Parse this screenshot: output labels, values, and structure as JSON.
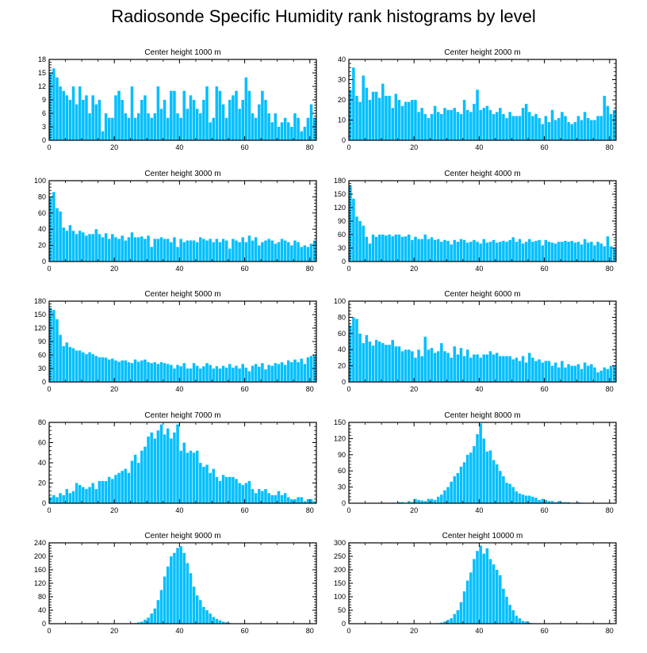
{
  "title": "Radiosonde Specific Humidity rank histograms by level",
  "colors": {
    "bar": "#00bfff",
    "axis": "#000000"
  },
  "chart_data": [
    {
      "type": "bar",
      "title": "Center height 1000 m",
      "xlim": [
        0,
        82
      ],
      "ylim": [
        0,
        18
      ],
      "xticks": [
        0,
        20,
        40,
        60,
        80
      ],
      "yticks": [
        0,
        3,
        6,
        9,
        12,
        15,
        18
      ],
      "values": [
        15,
        16,
        14,
        12,
        11,
        10,
        9,
        12,
        8,
        12,
        9,
        10,
        6,
        10,
        8,
        9,
        2,
        6,
        5,
        5,
        10,
        11,
        9,
        6,
        5,
        12,
        5,
        6,
        9,
        10,
        6,
        5,
        6,
        12,
        7,
        9,
        5,
        11,
        11,
        6,
        5,
        11,
        7,
        10,
        9,
        7,
        6,
        9,
        12,
        4,
        5,
        12,
        11,
        8,
        5,
        9,
        10,
        11,
        7,
        9,
        14,
        11,
        6,
        5,
        8,
        11,
        9,
        6,
        4,
        6,
        3,
        4,
        5,
        4,
        3,
        6,
        5,
        2,
        3,
        5,
        8,
        5
      ]
    },
    {
      "type": "bar",
      "title": "Center height 2000 m",
      "xlim": [
        0,
        82
      ],
      "ylim": [
        0,
        40
      ],
      "xticks": [
        0,
        20,
        40,
        60,
        80
      ],
      "yticks": [
        0,
        10,
        20,
        30,
        40
      ],
      "values": [
        25,
        36,
        22,
        19,
        32,
        26,
        20,
        24,
        24,
        21,
        28,
        22,
        22,
        16,
        23,
        20,
        17,
        19,
        19,
        20,
        20,
        14,
        16,
        13,
        11,
        13,
        17,
        14,
        13,
        16,
        15,
        15,
        16,
        14,
        13,
        20,
        15,
        14,
        18,
        25,
        15,
        16,
        17,
        15,
        13,
        14,
        16,
        13,
        11,
        14,
        12,
        12,
        12,
        16,
        18,
        14,
        12,
        13,
        11,
        8,
        12,
        9,
        15,
        10,
        11,
        14,
        12,
        9,
        8,
        9,
        12,
        10,
        14,
        11,
        10,
        10,
        12,
        12,
        22,
        17,
        13,
        15
      ]
    },
    {
      "type": "bar",
      "title": "Center height 3000 m",
      "xlim": [
        0,
        82
      ],
      "ylim": [
        0,
        100
      ],
      "xticks": [
        0,
        20,
        40,
        60,
        80
      ],
      "yticks": [
        0,
        20,
        40,
        60,
        80,
        100
      ],
      "values": [
        80,
        86,
        66,
        62,
        42,
        38,
        45,
        38,
        34,
        38,
        36,
        32,
        34,
        34,
        40,
        34,
        30,
        35,
        28,
        34,
        30,
        28,
        32,
        26,
        30,
        36,
        30,
        30,
        31,
        28,
        32,
        18,
        28,
        28,
        30,
        28,
        28,
        24,
        30,
        18,
        28,
        24,
        26,
        26,
        26,
        24,
        30,
        28,
        26,
        28,
        24,
        28,
        24,
        28,
        26,
        16,
        28,
        26,
        24,
        30,
        24,
        32,
        26,
        30,
        20,
        24,
        26,
        28,
        26,
        22,
        24,
        28,
        26,
        24,
        20,
        26,
        24,
        18,
        20,
        18,
        22,
        26
      ]
    },
    {
      "type": "bar",
      "title": "Center height 4000 m",
      "xlim": [
        0,
        82
      ],
      "ylim": [
        0,
        180
      ],
      "xticks": [
        0,
        20,
        40,
        60,
        80
      ],
      "yticks": [
        0,
        30,
        60,
        90,
        120,
        150,
        180
      ],
      "values": [
        170,
        140,
        100,
        90,
        80,
        55,
        40,
        60,
        55,
        60,
        60,
        58,
        60,
        56,
        60,
        60,
        55,
        56,
        60,
        48,
        55,
        50,
        50,
        60,
        50,
        54,
        48,
        50,
        44,
        48,
        46,
        38,
        48,
        44,
        50,
        48,
        42,
        44,
        48,
        44,
        40,
        50,
        42,
        44,
        48,
        42,
        44,
        46,
        44,
        48,
        54,
        44,
        50,
        40,
        44,
        50,
        44,
        46,
        48,
        36,
        48,
        44,
        42,
        40,
        44,
        44,
        46,
        44,
        46,
        42,
        44,
        38,
        50,
        42,
        44,
        36,
        44,
        40,
        34,
        56,
        34,
        30
      ]
    },
    {
      "type": "bar",
      "title": "Center height 5000 m",
      "xlim": [
        0,
        82
      ],
      "ylim": [
        0,
        180
      ],
      "xticks": [
        0,
        20,
        40,
        60,
        80
      ],
      "yticks": [
        0,
        30,
        60,
        90,
        120,
        150,
        180
      ],
      "values": [
        165,
        160,
        140,
        105,
        80,
        88,
        78,
        75,
        70,
        70,
        66,
        62,
        66,
        62,
        58,
        55,
        55,
        54,
        50,
        52,
        48,
        45,
        48,
        48,
        44,
        42,
        50,
        45,
        48,
        50,
        44,
        42,
        44,
        40,
        44,
        42,
        40,
        38,
        30,
        38,
        35,
        42,
        30,
        30,
        42,
        36,
        30,
        35,
        42,
        38,
        30,
        35,
        30,
        36,
        32,
        40,
        32,
        36,
        30,
        40,
        32,
        24,
        36,
        40,
        34,
        42,
        28,
        38,
        36,
        42,
        40,
        44,
        38,
        48,
        44,
        50,
        44,
        52,
        40,
        55,
        58,
        60
      ]
    },
    {
      "type": "bar",
      "title": "Center height 6000 m",
      "xlim": [
        0,
        82
      ],
      "ylim": [
        0,
        100
      ],
      "xticks": [
        0,
        20,
        40,
        60,
        80
      ],
      "yticks": [
        0,
        20,
        40,
        60,
        80,
        100
      ],
      "values": [
        70,
        80,
        78,
        60,
        48,
        58,
        50,
        45,
        52,
        50,
        48,
        46,
        46,
        52,
        44,
        44,
        38,
        40,
        40,
        38,
        30,
        40,
        32,
        56,
        40,
        42,
        36,
        38,
        48,
        38,
        36,
        30,
        44,
        34,
        42,
        32,
        40,
        30,
        34,
        34,
        30,
        34,
        34,
        38,
        34,
        36,
        32,
        32,
        32,
        32,
        28,
        30,
        26,
        32,
        24,
        36,
        30,
        26,
        28,
        24,
        26,
        26,
        20,
        24,
        18,
        26,
        18,
        22,
        20,
        20,
        22,
        16,
        24,
        20,
        22,
        18,
        12,
        14,
        18,
        16,
        20,
        20
      ]
    },
    {
      "type": "bar",
      "title": "Center height 7000 m",
      "xlim": [
        0,
        82
      ],
      "ylim": [
        0,
        80
      ],
      "xticks": [
        0,
        20,
        40,
        60,
        80
      ],
      "yticks": [
        0,
        20,
        40,
        60,
        80
      ],
      "values": [
        6,
        8,
        6,
        10,
        8,
        14,
        10,
        12,
        20,
        18,
        16,
        14,
        16,
        20,
        14,
        22,
        22,
        22,
        26,
        24,
        28,
        30,
        32,
        34,
        30,
        42,
        48,
        40,
        52,
        56,
        66,
        70,
        64,
        72,
        78,
        68,
        74,
        64,
        70,
        78,
        52,
        60,
        50,
        52,
        50,
        52,
        40,
        36,
        38,
        30,
        34,
        26,
        22,
        28,
        26,
        26,
        26,
        24,
        20,
        18,
        20,
        22,
        14,
        10,
        14,
        12,
        14,
        10,
        8,
        8,
        12,
        8,
        10,
        6,
        4,
        4,
        6,
        6,
        2,
        4,
        4,
        2
      ]
    },
    {
      "type": "bar",
      "title": "Center height 8000 m",
      "xlim": [
        0,
        82
      ],
      "ylim": [
        0,
        150
      ],
      "xticks": [
        0,
        20,
        40,
        60,
        80
      ],
      "yticks": [
        0,
        30,
        60,
        90,
        120,
        150
      ],
      "values": [
        0,
        0,
        0,
        0,
        0,
        0,
        0,
        0,
        0,
        0,
        1,
        0,
        0,
        1,
        0,
        2,
        2,
        0,
        4,
        2,
        8,
        6,
        5,
        4,
        8,
        8,
        6,
        12,
        16,
        24,
        30,
        40,
        50,
        56,
        68,
        76,
        90,
        94,
        106,
        128,
        148,
        120,
        96,
        98,
        80,
        72,
        60,
        50,
        38,
        36,
        30,
        22,
        18,
        16,
        14,
        14,
        12,
        10,
        6,
        8,
        6,
        4,
        4,
        2,
        4,
        2,
        2,
        2,
        0,
        1,
        2,
        1,
        0,
        0,
        0,
        0,
        0,
        0,
        0,
        0,
        0,
        0
      ]
    },
    {
      "type": "bar",
      "title": "Center height 9000 m",
      "xlim": [
        0,
        82
      ],
      "ylim": [
        0,
        240
      ],
      "xticks": [
        0,
        20,
        40,
        60,
        80
      ],
      "yticks": [
        0,
        40,
        80,
        120,
        160,
        200,
        240
      ],
      "values": [
        0,
        0,
        0,
        0,
        0,
        0,
        0,
        0,
        0,
        0,
        0,
        0,
        0,
        0,
        0,
        0,
        0,
        0,
        0,
        0,
        0,
        1,
        0,
        0,
        1,
        2,
        2,
        4,
        6,
        12,
        18,
        30,
        45,
        70,
        100,
        140,
        170,
        200,
        210,
        225,
        230,
        210,
        180,
        150,
        110,
        84,
        70,
        50,
        40,
        30,
        20,
        14,
        10,
        6,
        4,
        2,
        1,
        1,
        0,
        0,
        0,
        0,
        0,
        0,
        0,
        0,
        0,
        0,
        0,
        0,
        0,
        0,
        0,
        0,
        0,
        0,
        0,
        0,
        0,
        0,
        0,
        0
      ]
    },
    {
      "type": "bar",
      "title": "Center height 10000 m",
      "xlim": [
        0,
        82
      ],
      "ylim": [
        0,
        300
      ],
      "xticks": [
        0,
        20,
        40,
        60,
        80
      ],
      "yticks": [
        0,
        50,
        100,
        150,
        200,
        250,
        300
      ],
      "values": [
        0,
        0,
        0,
        0,
        0,
        0,
        0,
        0,
        0,
        0,
        0,
        0,
        0,
        0,
        0,
        0,
        0,
        0,
        0,
        0,
        0,
        0,
        0,
        0,
        0,
        1,
        1,
        2,
        4,
        8,
        14,
        20,
        36,
        50,
        80,
        120,
        160,
        190,
        240,
        270,
        290,
        260,
        280,
        240,
        220,
        200,
        180,
        130,
        100,
        70,
        50,
        30,
        20,
        10,
        8,
        4,
        2,
        1,
        0,
        0,
        0,
        0,
        0,
        0,
        0,
        0,
        0,
        0,
        0,
        0,
        0,
        0,
        0,
        0,
        0,
        0,
        0,
        0,
        0,
        0,
        0,
        0
      ]
    }
  ]
}
